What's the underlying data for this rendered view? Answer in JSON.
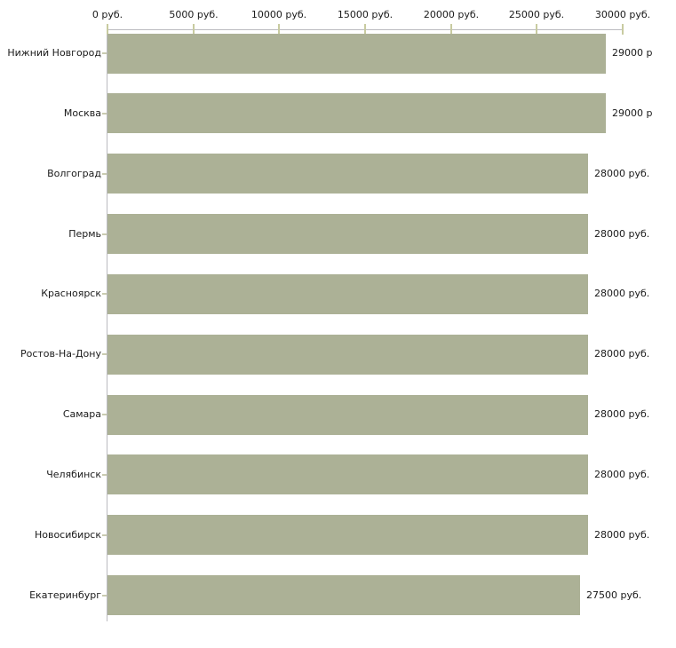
{
  "chart_data": {
    "type": "bar",
    "orientation": "horizontal",
    "title": "",
    "xlabel": "",
    "ylabel": "",
    "grid": false,
    "legend": null,
    "xlim": [
      0,
      30000
    ],
    "x_ticks": [
      0,
      5000,
      10000,
      15000,
      20000,
      25000,
      30000
    ],
    "x_tick_labels": [
      "0 руб.",
      "5000 руб.",
      "10000 руб.",
      "15000 руб.",
      "20000 руб.",
      "25000 руб.",
      "30000 руб."
    ],
    "categories": [
      "Нижний Новгород",
      "Москва",
      "Волгоград",
      "Пермь",
      "Красноярск",
      "Ростов-На-Дону",
      "Самара",
      "Челябинск",
      "Новосибирск",
      "Екатеринбург"
    ],
    "values": [
      29000,
      29000,
      28000,
      28000,
      28000,
      28000,
      28000,
      28000,
      28000,
      27500
    ],
    "value_labels": [
      "29000 р",
      "29000 р",
      "28000 руб.",
      "28000 руб.",
      "28000 руб.",
      "28000 руб.",
      "28000 руб.",
      "28000 руб.",
      "28000 руб.",
      "27500 руб."
    ],
    "colors": {
      "bar": "#acb196",
      "axis_line": "#bbbbbf",
      "tick_mark": "#c8cba0",
      "category_tick": "#c9cbb0",
      "text": "#1a1a1a",
      "background": "#ffffff"
    }
  }
}
